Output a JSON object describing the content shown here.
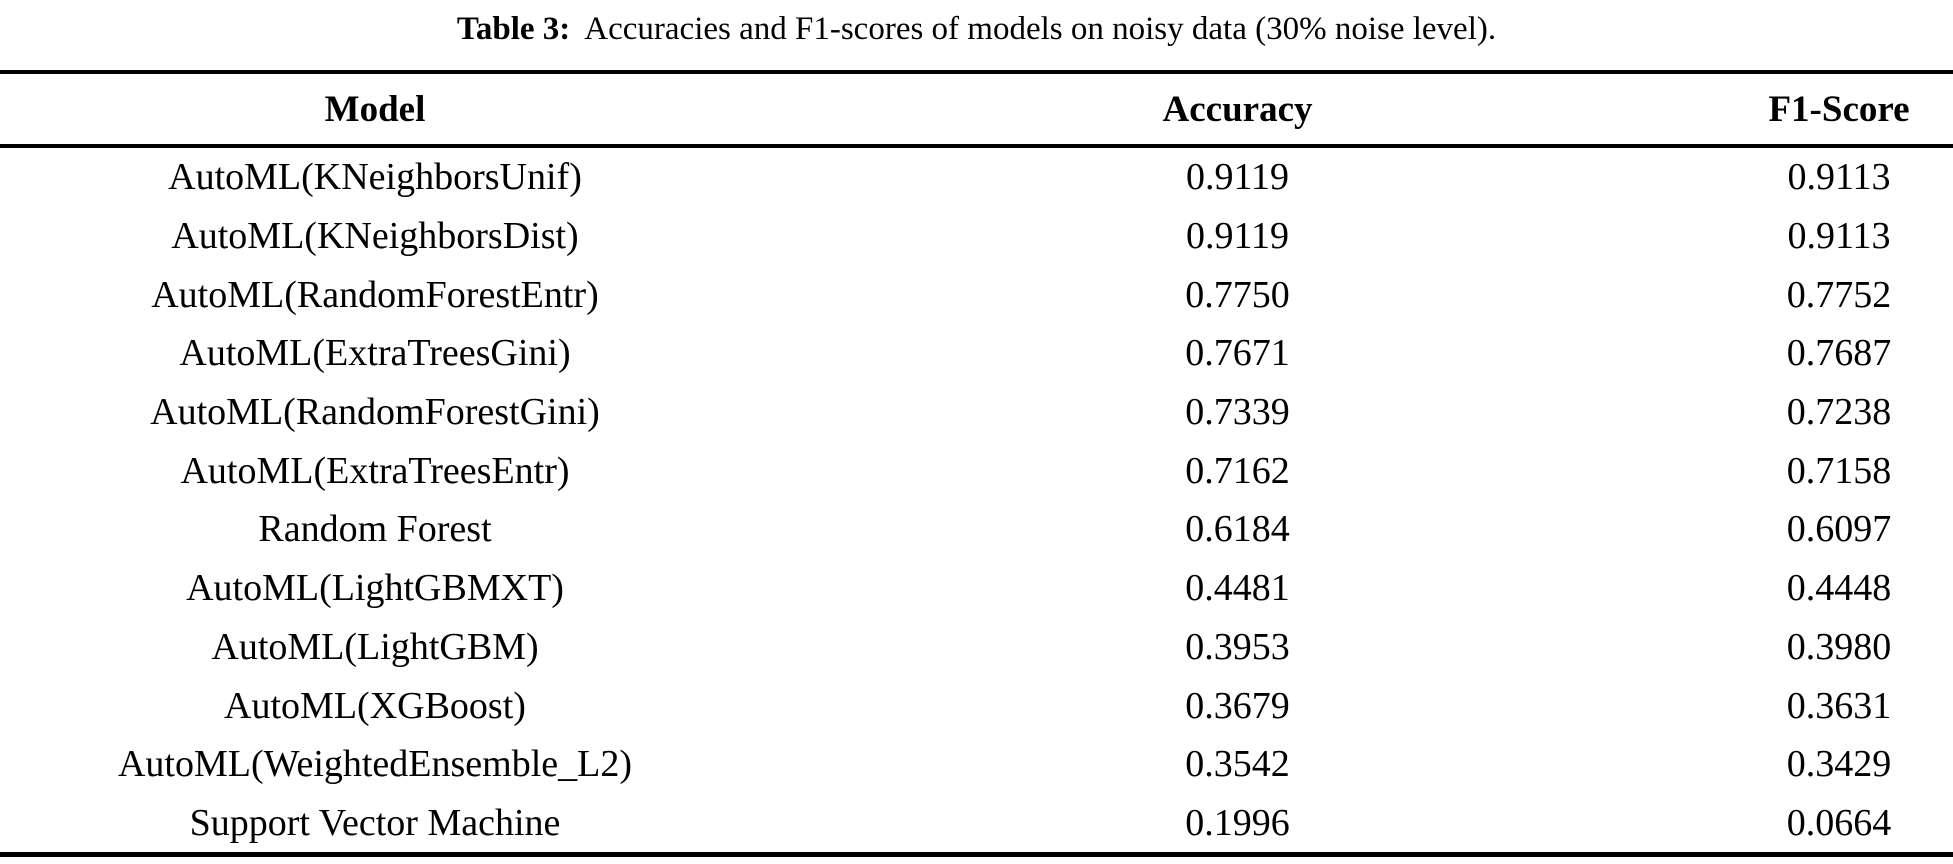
{
  "caption": {
    "label": "Table 3:",
    "text": "Accuracies and F1-scores of models on noisy data (30% noise level)."
  },
  "table": {
    "columns": [
      "Model",
      "Accuracy",
      "F1-Score"
    ],
    "rows": [
      {
        "model": "AutoML(KNeighborsUnif)",
        "accuracy": "0.9119",
        "f1": "0.9113"
      },
      {
        "model": "AutoML(KNeighborsDist)",
        "accuracy": "0.9119",
        "f1": "0.9113"
      },
      {
        "model": "AutoML(RandomForestEntr)",
        "accuracy": "0.7750",
        "f1": "0.7752"
      },
      {
        "model": "AutoML(ExtraTreesGini)",
        "accuracy": "0.7671",
        "f1": "0.7687"
      },
      {
        "model": "AutoML(RandomForestGini)",
        "accuracy": "0.7339",
        "f1": "0.7238"
      },
      {
        "model": "AutoML(ExtraTreesEntr)",
        "accuracy": "0.7162",
        "f1": "0.7158"
      },
      {
        "model": "Random Forest",
        "accuracy": "0.6184",
        "f1": "0.6097"
      },
      {
        "model": "AutoML(LightGBMXT)",
        "accuracy": "0.4481",
        "f1": "0.4448"
      },
      {
        "model": "AutoML(LightGBM)",
        "accuracy": "0.3953",
        "f1": "0.3980"
      },
      {
        "model": "AutoML(XGBoost)",
        "accuracy": "0.3679",
        "f1": "0.3631"
      },
      {
        "model": "AutoML(WeightedEnsemble_L2)",
        "accuracy": "0.3542",
        "f1": "0.3429"
      },
      {
        "model": "Support Vector Machine",
        "accuracy": "0.1996",
        "f1": "0.0664"
      }
    ]
  }
}
